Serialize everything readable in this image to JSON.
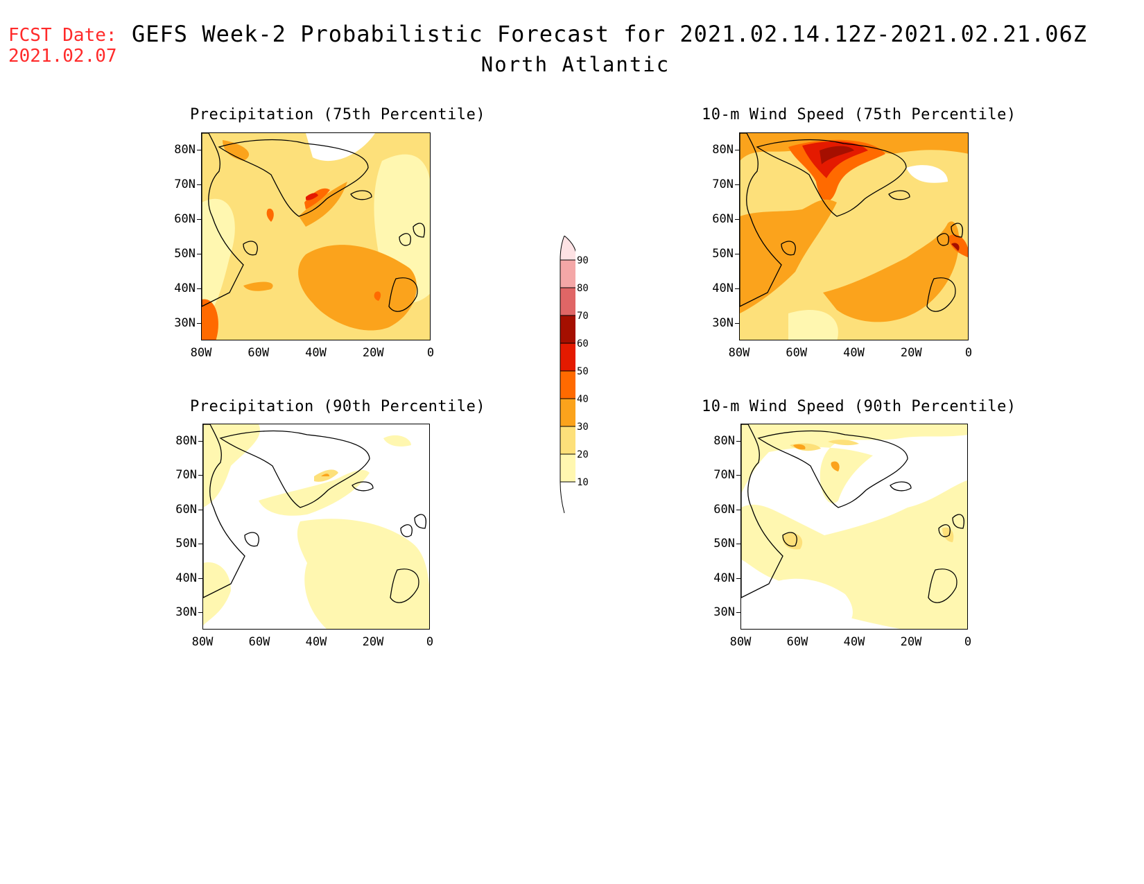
{
  "fcst_date": {
    "label": "FCST Date:",
    "value": "2021.02.07"
  },
  "title": "GEFS Week-2 Probabilistic Forecast for 2021.02.14.12Z-2021.02.21.06Z",
  "subtitle": "North Atlantic",
  "panels": [
    {
      "id": "precip75",
      "title": "Precipitation (75th Percentile)"
    },
    {
      "id": "wind75",
      "title": "10-m Wind Speed (75th Percentile)"
    },
    {
      "id": "precip90",
      "title": "Precipitation (90th Percentile)"
    },
    {
      "id": "wind90",
      "title": "10-m Wind Speed (90th Percentile)"
    }
  ],
  "lat_ticks": [
    "80N",
    "70N",
    "60N",
    "50N",
    "40N",
    "30N"
  ],
  "lon_ticks": [
    "80W",
    "60W",
    "40W",
    "20W",
    "0"
  ],
  "colorbar": {
    "levels": [
      "90",
      "80",
      "70",
      "60",
      "50",
      "40",
      "30",
      "20",
      "10"
    ],
    "colors": {
      "10-20": "#fff7b0",
      "20-30": "#fde07a",
      "30-40": "#fba31c",
      "40-50": "#ff6a00",
      "50-60": "#e41a00",
      "60-70": "#a50f00",
      "70-80": "#e06666",
      "80-90": "#f4a7a7",
      "90-100": "#fde2e4"
    }
  }
}
